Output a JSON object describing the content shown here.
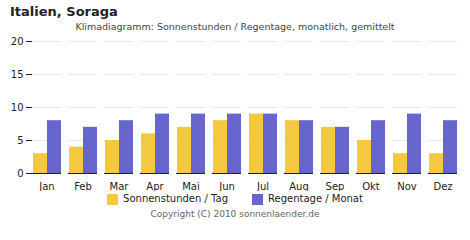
{
  "chart_data": {
    "type": "bar",
    "title": "Italien, Soraga",
    "subtitle": "Klimadiagramm: Sonnenstunden / Regentage, monatlich, gemittelt",
    "caption": "Copyright (C) 2010 sonnenlaender.de",
    "categories": [
      "Jan",
      "Feb",
      "Mar",
      "Apr",
      "Mai",
      "Jun",
      "Jul",
      "Aug",
      "Sep",
      "Okt",
      "Nov",
      "Dez"
    ],
    "series": [
      {
        "name": "Sonnenstunden / Tag",
        "color": "#F5C842",
        "values": [
          3,
          4,
          5,
          6,
          7,
          8,
          9,
          8,
          7,
          5,
          3,
          3
        ]
      },
      {
        "name": "Regentage / Monat",
        "color": "#6666CC",
        "values": [
          8,
          7,
          8,
          9,
          9,
          9,
          9,
          8,
          7,
          8,
          9,
          8
        ]
      }
    ],
    "ylim": [
      0,
      20
    ],
    "yticks": [
      0,
      5,
      10,
      15,
      20
    ],
    "grid": true,
    "legend": "bottom"
  }
}
